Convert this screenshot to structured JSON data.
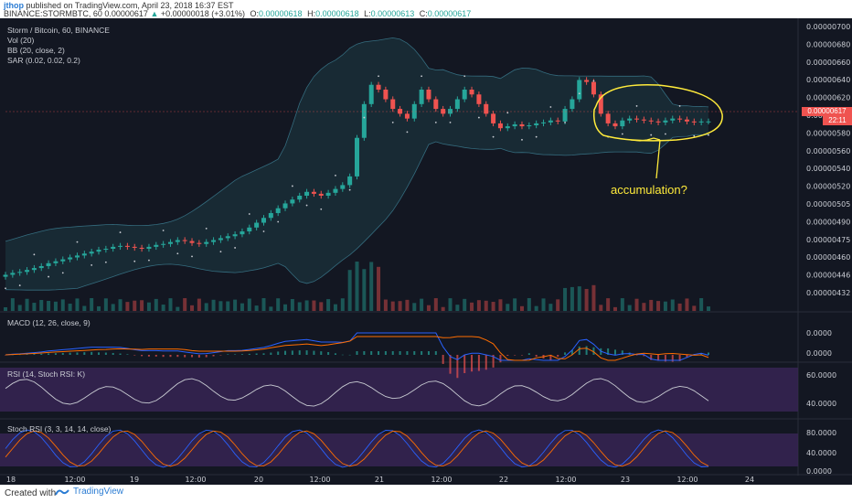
{
  "header": {
    "username": "jthop",
    "published_text": "published on TradingView.com, April 23, 2018 16:37 EST",
    "symbol": "BINANCE:STORMBTC, 60",
    "open": "0.00000617",
    "change_arrow": "▲",
    "change": "+0.00000018 (+3.01%)",
    "o_label": "O:",
    "o_value": "0.00000618",
    "h_label": "H:",
    "h_value": "0.00000618",
    "l_label": "L:",
    "l_value": "0.00000613",
    "c_label": "C:",
    "c_value": "0.00000617"
  },
  "legend": {
    "title": "Storm / Bitcoin, 60, BINANCE",
    "vol": "Vol (20)",
    "bb": "BB (20, close, 2)",
    "sar": "SAR (0.02, 0.02, 0.2)"
  },
  "panes": {
    "macd": "MACD (12, 26, close, 9)",
    "rsi": "RSI (14, Stoch RSI: K)",
    "stoch": "Stoch RSI (3, 3, 14, 14, close)"
  },
  "annotation": {
    "text": "accumulation?"
  },
  "price_tag": {
    "value": "0.00000617",
    "countdown": "22:11"
  },
  "footer": {
    "created_with": "Created with",
    "brand": "TradingView"
  },
  "colors": {
    "background": "#131722",
    "up": "#26a69a",
    "down": "#ef5350",
    "annotation": "#ffeb3b",
    "bb_band": "#4a9fb5",
    "macd_line": "#2962ff",
    "signal_line": "#ff6d00",
    "rsi_line": "#c9ccd3",
    "rsi_bg": "#3a2558",
    "stoch_k": "#2962ff",
    "stoch_d": "#ff6d00"
  },
  "chart_data": {
    "type": "candlestick",
    "title": "Storm / Bitcoin, 60, BINANCE",
    "x_ticks": [
      "18",
      "12:00",
      "19",
      "12:00",
      "20",
      "12:00",
      "21",
      "12:00",
      "22",
      "12:00",
      "23",
      "12:00",
      "24"
    ],
    "price_axis_ticks": [
      "0.00000700",
      "0.00000680",
      "0.00000660",
      "0.00000640",
      "0.00000620",
      "0.00000600",
      "0.00000580",
      "0.00000560",
      "0.00000540",
      "0.00000520",
      "0.00000505",
      "0.00000490",
      "0.00000475",
      "0.00000460",
      "0.00000446",
      "0.00000432"
    ],
    "macd_axis_ticks": [
      "0.0000",
      "0.0000"
    ],
    "rsi_axis_ticks": [
      "60.0000",
      "40.0000"
    ],
    "stoch_axis_ticks": [
      "80.0000",
      "40.0000",
      "0.0000"
    ],
    "close_series": [
      458,
      460,
      461,
      463,
      465,
      467,
      470,
      472,
      474,
      476,
      478,
      480,
      482,
      484,
      485,
      487,
      488,
      487,
      486,
      485,
      487,
      489,
      490,
      492,
      494,
      493,
      491,
      490,
      492,
      494,
      496,
      498,
      500,
      503,
      507,
      512,
      517,
      522,
      527,
      532,
      536,
      540,
      544,
      542,
      540,
      543,
      547,
      551,
      560,
      600,
      635,
      655,
      650,
      640,
      630,
      625,
      620,
      635,
      650,
      640,
      630,
      625,
      630,
      640,
      650,
      645,
      635,
      625,
      615,
      610,
      612,
      614,
      612,
      613,
      615,
      616,
      618,
      617,
      630,
      640,
      660,
      658,
      645,
      625,
      615,
      612,
      618,
      620,
      619,
      618,
      617,
      616,
      618,
      620,
      619,
      617,
      616,
      617,
      617
    ],
    "annotation": "accumulation?"
  }
}
